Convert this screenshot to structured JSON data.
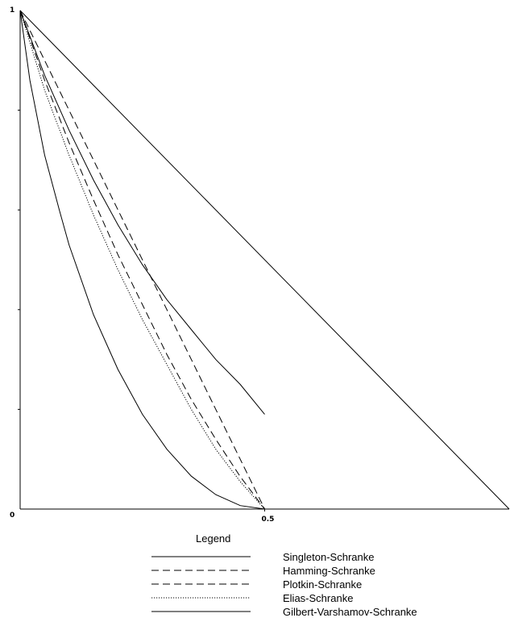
{
  "chart_data": {
    "type": "line",
    "title": "",
    "xlabel": "",
    "ylabel": "",
    "xlim": [
      0,
      1
    ],
    "ylim": [
      0,
      1
    ],
    "grid": false,
    "x_ticks": [
      0.5
    ],
    "x_tick_labels": [
      "0.5"
    ],
    "y_tick_labels": [
      "0",
      "1"
    ],
    "y_ticks": [
      0,
      1
    ],
    "legend_title": "Legend",
    "legend_position": "bottom-center",
    "series": [
      {
        "name": "Singleton-Schranke",
        "style": "solid",
        "x": [
          0,
          1
        ],
        "y": [
          1,
          0
        ]
      },
      {
        "name": "Hamming-Schranke",
        "style": "dashed",
        "x": [
          0,
          0.05,
          0.1,
          0.15,
          0.2,
          0.25,
          0.3,
          0.35,
          0.4,
          0.45,
          0.5
        ],
        "y": [
          1,
          0.86,
          0.735,
          0.62,
          0.51,
          0.41,
          0.31,
          0.22,
          0.14,
          0.065,
          0
        ]
      },
      {
        "name": "Plotkin-Schranke",
        "style": "dashed",
        "x": [
          0,
          0.5
        ],
        "y": [
          1,
          0
        ]
      },
      {
        "name": "Elias-Schranke",
        "style": "dotted",
        "x": [
          0,
          0.05,
          0.1,
          0.15,
          0.2,
          0.25,
          0.3,
          0.35,
          0.4,
          0.45,
          0.5
        ],
        "y": [
          1,
          0.84,
          0.71,
          0.59,
          0.48,
          0.38,
          0.29,
          0.2,
          0.12,
          0.055,
          0
        ]
      },
      {
        "name": "Gilbert-Varshamov-Schranke",
        "style": "solid",
        "x": [
          0,
          0.02,
          0.05,
          0.08,
          0.1,
          0.15,
          0.2,
          0.25,
          0.3,
          0.35,
          0.4,
          0.45,
          0.5
        ],
        "y": [
          1,
          0.86,
          0.71,
          0.6,
          0.53,
          0.39,
          0.28,
          0.19,
          0.12,
          0.066,
          0.029,
          0.007,
          0
        ]
      },
      {
        "name": "",
        "style": "solid",
        "x": [
          0,
          0.05,
          0.1,
          0.15,
          0.2,
          0.25,
          0.3,
          0.35,
          0.4,
          0.45,
          0.5
        ],
        "y": [
          1,
          0.87,
          0.76,
          0.66,
          0.57,
          0.49,
          0.42,
          0.36,
          0.3,
          0.25,
          0.19
        ]
      }
    ]
  }
}
